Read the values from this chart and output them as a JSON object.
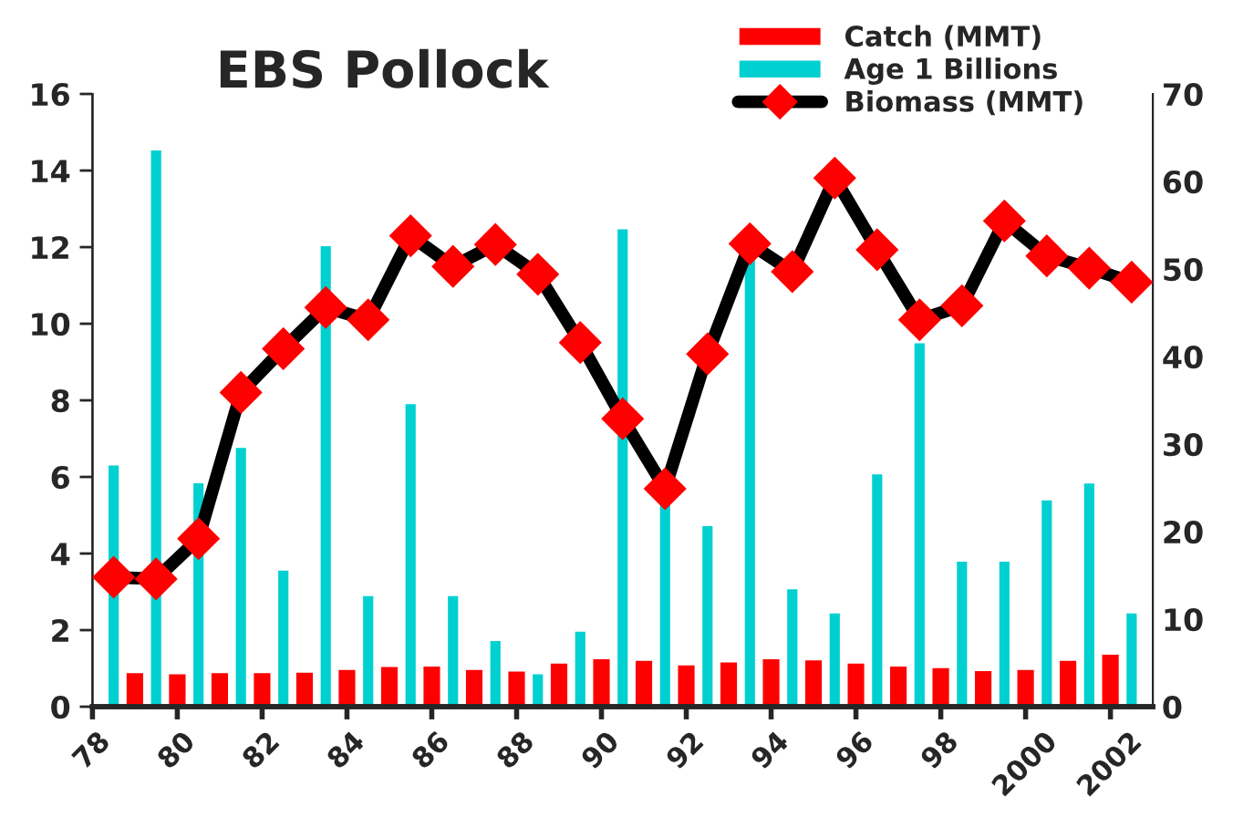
{
  "chart_data": {
    "type": "bar",
    "title": "EBS Pollock",
    "xlim": [
      1978,
      2003
    ],
    "xticks": [
      {
        "value": 1978,
        "label": "78"
      },
      {
        "value": 1980,
        "label": "80"
      },
      {
        "value": 1982,
        "label": "82"
      },
      {
        "value": 1984,
        "label": "84"
      },
      {
        "value": 1986,
        "label": "86"
      },
      {
        "value": 1988,
        "label": "88"
      },
      {
        "value": 1990,
        "label": "90"
      },
      {
        "value": 1992,
        "label": "92"
      },
      {
        "value": 1994,
        "label": "94"
      },
      {
        "value": 1996,
        "label": "96"
      },
      {
        "value": 1998,
        "label": "98"
      },
      {
        "value": 2000,
        "label": "2000"
      },
      {
        "value": 2002,
        "label": "2002"
      }
    ],
    "ylim": [
      0,
      16
    ],
    "yticks": [
      0,
      2,
      4,
      6,
      8,
      10,
      12,
      14,
      16
    ],
    "y2lim": [
      0,
      70
    ],
    "y2ticks": [
      0,
      10,
      20,
      30,
      40,
      50,
      60,
      70
    ],
    "grid": false,
    "legend": "top right",
    "marker": "diamond",
    "line_style": "solid",
    "series": [
      {
        "name": "Catch (MMT)",
        "color": "#ff0000",
        "x": [
          1979,
          1980,
          1981,
          1982,
          1983,
          1984,
          1985,
          1986,
          1987,
          1988,
          1989,
          1990,
          1991,
          1992,
          1993,
          1994,
          1995,
          1996,
          1997,
          1998,
          1999,
          2000,
          2001,
          2002
        ],
        "values": [
          0.91,
          0.88,
          0.91,
          0.91,
          0.92,
          0.99,
          1.07,
          1.08,
          0.99,
          0.95,
          1.16,
          1.27,
          1.23,
          1.11,
          1.19,
          1.27,
          1.24,
          1.16,
          1.08,
          1.04,
          0.96,
          0.99,
          1.23,
          1.39
        ]
      },
      {
        "name": "Age 1 Billions",
        "type": "bar",
        "color": "#00d0d0",
        "x": [
          1978.5,
          1979.5,
          1980.5,
          1981.5,
          1982.5,
          1983.5,
          1984.5,
          1985.5,
          1986.5,
          1987.5,
          1988.5,
          1989.5,
          1990.5,
          1991.5,
          1992.5,
          1993.5,
          1994.5,
          1995.5,
          1996.5,
          1997.5,
          1998.5,
          1999.5,
          2000.5,
          2001.5,
          2002.5
        ],
        "values": [
          6.33,
          14.56,
          5.87,
          6.79,
          3.59,
          12.06,
          2.92,
          7.93,
          2.92,
          1.75,
          0.88,
          1.99,
          12.5,
          5.4,
          4.75,
          11.8,
          3.1,
          2.47,
          6.1,
          9.52,
          3.82,
          3.82,
          5.42,
          5.86,
          2.47
        ]
      },
      {
        "name": "Biomass (MMT)",
        "type": "line",
        "axis": "y2",
        "color": "#000000",
        "x": [
          1978.5,
          1979.5,
          1980.5,
          1981.5,
          1982.5,
          1983.5,
          1984.5,
          1985.5,
          1986.5,
          1987.5,
          1988.5,
          1989.5,
          1990.5,
          1991.5,
          1992.5,
          1993.5,
          1994.5,
          1995.5,
          1996.5,
          1997.5,
          1998.5,
          1999.5,
          2000.5,
          2001.5,
          2002.5
        ],
        "values": [
          14.8,
          14.6,
          19.2,
          35.9,
          40.9,
          45.6,
          44.2,
          53.8,
          50.3,
          52.8,
          49.4,
          41.6,
          32.9,
          24.9,
          40.3,
          52.9,
          49.7,
          60.4,
          52.2,
          44.2,
          45.8,
          55.5,
          51.5,
          50.1,
          48.5
        ]
      }
    ]
  }
}
